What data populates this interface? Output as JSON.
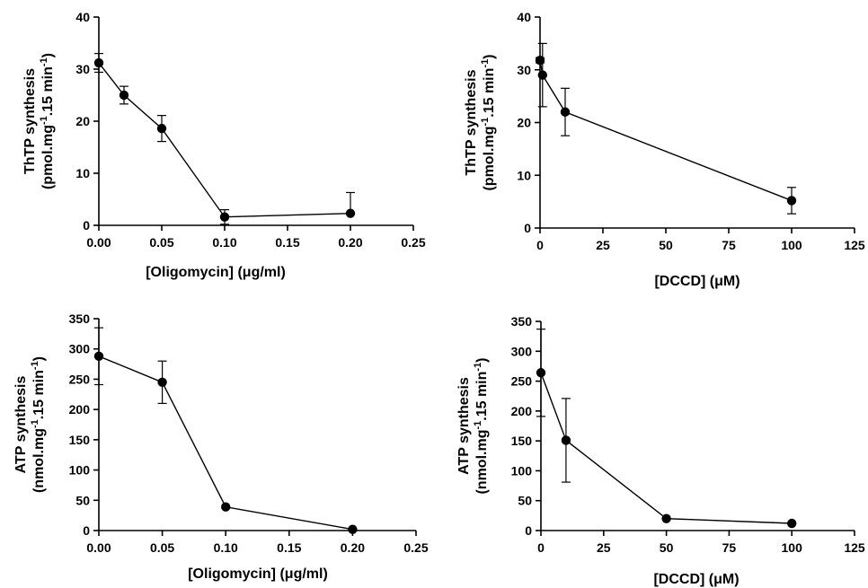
{
  "chart_data": [
    {
      "type": "line",
      "xlabel": "[Oligomycin] (μg/ml)",
      "ylabel": [
        "ThTP synthesis",
        "(pmol.mg",
        "-1",
        ".15 min",
        "-1",
        ")"
      ],
      "xlim": [
        0,
        0.25
      ],
      "ylim": [
        0,
        40
      ],
      "xticks": [
        0,
        0.05,
        0.1,
        0.15,
        0.2,
        0.25
      ],
      "xtick_labels": [
        "0.00",
        "0.05",
        "0.10",
        "0.15",
        "0.20",
        "0.25"
      ],
      "yticks": [
        0,
        10,
        20,
        30,
        40
      ],
      "ytick_labels": [
        "0",
        "10",
        "20",
        "30",
        "40"
      ],
      "x": [
        0,
        0.02,
        0.05,
        0.1,
        0.2
      ],
      "y": [
        31.2,
        25.0,
        18.6,
        1.6,
        2.3
      ],
      "err": [
        1.8,
        1.7,
        2.5,
        1.4,
        4.0
      ],
      "err_mode": [
        "both",
        "both",
        "both",
        "both",
        "up"
      ]
    },
    {
      "type": "line",
      "xlabel": "[DCCD] (μM)",
      "ylabel": [
        "ThTP synthesis",
        "(pmol.mg",
        "-1",
        ".15 min",
        "-1",
        ")"
      ],
      "xlim": [
        0,
        125
      ],
      "ylim": [
        0,
        40
      ],
      "xticks": [
        0,
        25,
        50,
        75,
        100,
        125
      ],
      "xtick_labels": [
        "0",
        "25",
        "50",
        "75",
        "100",
        "125"
      ],
      "yticks": [
        0,
        10,
        20,
        30,
        40
      ],
      "ytick_labels": [
        "0",
        "10",
        "20",
        "30",
        "40"
      ],
      "x": [
        0,
        1,
        10,
        100
      ],
      "y": [
        31.8,
        29.0,
        22.0,
        5.2
      ],
      "err": [
        0.5,
        6.0,
        4.5,
        2.5
      ],
      "err_mode": [
        "both",
        "both",
        "both",
        "both"
      ]
    },
    {
      "type": "line",
      "xlabel": "[Oligomycin] (μg/ml)",
      "ylabel": [
        "ATP synthesis",
        "(nmol.mg",
        "-1",
        ".15 min",
        "-1",
        ")"
      ],
      "xlim": [
        0,
        0.25
      ],
      "ylim": [
        0,
        350
      ],
      "xticks": [
        0,
        0.05,
        0.1,
        0.15,
        0.2,
        0.25
      ],
      "xtick_labels": [
        "0.00",
        "0.05",
        "0.10",
        "0.15",
        "0.20",
        "0.25"
      ],
      "yticks": [
        0,
        50,
        100,
        150,
        200,
        250,
        300,
        350
      ],
      "ytick_labels": [
        "0",
        "50",
        "100",
        "150",
        "200",
        "250",
        "300",
        "350"
      ],
      "x": [
        0,
        0.05,
        0.1,
        0.2
      ],
      "y": [
        288,
        245,
        39,
        2
      ],
      "err": [
        47,
        35,
        0,
        0
      ],
      "err_mode": [
        "both",
        "both",
        "both",
        "both"
      ]
    },
    {
      "type": "line",
      "xlabel": "[DCCD] (μM)",
      "ylabel": [
        "ATP synthesis",
        "(nmol.mg",
        "-1",
        ".15 min",
        "-1",
        ")"
      ],
      "xlim": [
        0,
        125
      ],
      "ylim": [
        0,
        350
      ],
      "xticks": [
        0,
        25,
        50,
        75,
        100,
        125
      ],
      "xtick_labels": [
        "0",
        "25",
        "50",
        "75",
        "100",
        "125"
      ],
      "yticks": [
        0,
        50,
        100,
        150,
        200,
        250,
        300,
        350
      ],
      "ytick_labels": [
        "0",
        "50",
        "100",
        "150",
        "200",
        "250",
        "300",
        "350"
      ],
      "x": [
        0,
        10,
        50,
        100
      ],
      "y": [
        264,
        151,
        20,
        12
      ],
      "err": [
        73,
        70,
        0,
        0
      ],
      "err_mode": [
        "both",
        "both",
        "both",
        "both"
      ]
    }
  ]
}
